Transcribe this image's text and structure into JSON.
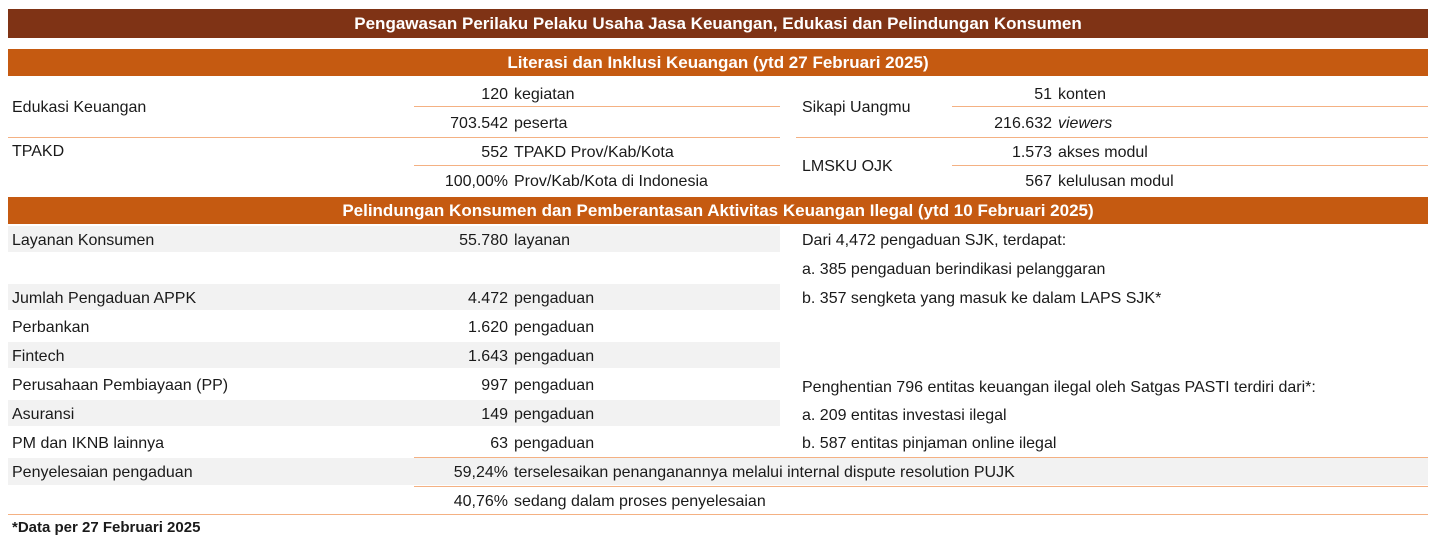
{
  "title": "Pengawasan Perilaku Pelaku Usaha Jasa Keuangan, Edukasi dan Pelindungan Konsumen",
  "section1": {
    "header": "Literasi dan Inklusi Keuangan (ytd 27 Februari 2025)",
    "edukasi": {
      "label": "Edukasi Keuangan",
      "rows": [
        {
          "value": "120",
          "unit": "kegiatan"
        },
        {
          "value": "703.542",
          "unit": "peserta"
        }
      ]
    },
    "tpakd": {
      "label": "TPAKD",
      "rows": [
        {
          "value": "552",
          "unit": "TPAKD Prov/Kab/Kota"
        },
        {
          "value": "100,00%",
          "unit": "Prov/Kab/Kota di Indonesia"
        }
      ]
    },
    "sikapi": {
      "label": "Sikapi Uangmu",
      "rows": [
        {
          "value": "51",
          "unit": "konten"
        },
        {
          "value": "216.632",
          "unit": "viewers"
        }
      ]
    },
    "lmsku": {
      "label": "LMSKU OJK",
      "rows": [
        {
          "value": "1.573",
          "unit": "akses modul"
        },
        {
          "value": "567",
          "unit": "kelulusan modul"
        }
      ]
    }
  },
  "section2": {
    "header": "Pelindungan Konsumen dan Pemberantasan Aktivitas Keuangan Ilegal (ytd 10 Februari 2025)",
    "rows": [
      {
        "label": "Layanan Konsumen",
        "value": "55.780",
        "unit": "layanan"
      },
      {
        "label": "Jumlah Pengaduan APPK",
        "value": "4.472",
        "unit": "pengaduan"
      },
      {
        "label": "Perbankan",
        "value": "1.620",
        "unit": "pengaduan"
      },
      {
        "label": "Fintech",
        "value": "1.643",
        "unit": "pengaduan"
      },
      {
        "label": "Perusahaan Pembiayaan (PP)",
        "value": "997",
        "unit": "pengaduan"
      },
      {
        "label": "Asuransi",
        "value": "149",
        "unit": "pengaduan"
      },
      {
        "label": "PM dan IKNB lainnya",
        "value": "63",
        "unit": "pengaduan"
      }
    ],
    "penyelesaian": {
      "label": "Penyelesaian pengaduan",
      "rows": [
        {
          "value": "59,24%",
          "text": "terselesaikan penanganannya melalui internal dispute resolution PUJK"
        },
        {
          "value": "40,76%",
          "text": "sedang dalam proses penyelesaian"
        }
      ]
    },
    "right_block_1": [
      "Dari 4,472 pengaduan SJK, terdapat:",
      "a. 385 pengaduan berindikasi pelanggaran",
      "b. 357 sengketa yang masuk ke dalam LAPS SJK*"
    ],
    "right_block_2": [
      "Penghentian 796 entitas keuangan ilegal oleh Satgas PASTI terdiri dari*:",
      "a. 209 entitas investasi ilegal",
      "b. 587 entitas pinjaman online ilegal"
    ]
  },
  "footnote": "*Data per 27 Februari 2025",
  "colors": {
    "title_bg": "#7f3315",
    "section_bg": "#c55a11",
    "rule": "#f4b183",
    "shade": "#f2f2f2"
  }
}
